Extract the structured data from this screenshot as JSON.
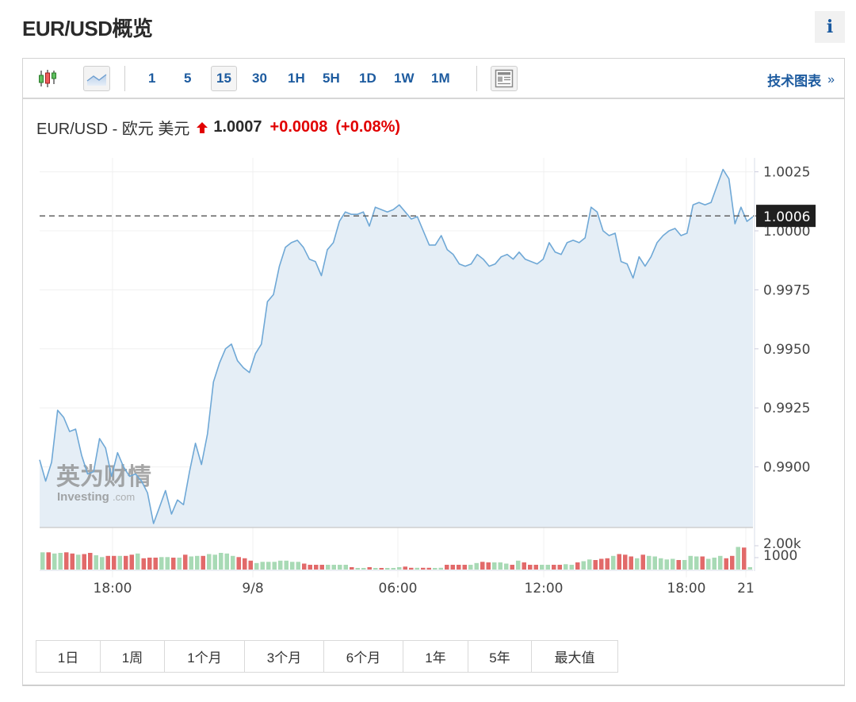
{
  "header": {
    "title": "EUR/USD概览",
    "info_icon": "info-icon",
    "info_label": "i"
  },
  "toolbar": {
    "chart_type_icons": [
      "candlestick-icon",
      "area-chart-icon"
    ],
    "intervals": [
      "1",
      "5",
      "15",
      "30",
      "1H",
      "5H",
      "1D",
      "1W",
      "1M"
    ],
    "active_interval": "15",
    "layout_icon": "layout-icon",
    "tech_chart_label": "技术图表",
    "tech_chart_chevron": "»"
  },
  "quote": {
    "name": "EUR/USD - 欧元 美元",
    "direction": "up",
    "price": "1.0007",
    "change": "+0.0008",
    "change_pct": "(+0.08%)",
    "up_color": "#e10000"
  },
  "watermark": {
    "cn": "英为财情",
    "en": "Investing",
    "en_suffix": ".com"
  },
  "range_buttons": [
    "1日",
    "1周",
    "1个月",
    "3个月",
    "6个月",
    "1年",
    "5年",
    "最大值"
  ],
  "chart_data": {
    "type": "area",
    "title": "EUR/USD - 欧元 美元",
    "interval": "15 minutes",
    "xlabel": "",
    "ylabel": "",
    "x_tick_labels": [
      "18:00",
      "9/8",
      "06:00",
      "12:00",
      "18:00",
      "21"
    ],
    "y_tick_labels": [
      "1.0025",
      "1.0000",
      "0.9975",
      "0.9950",
      "0.9925",
      "0.9900"
    ],
    "ylim": [
      0.9874,
      1.003
    ],
    "current_price_marker": "1.0006",
    "grid": true,
    "line_color": "#6fa8d6",
    "fill_color": "#e4edf5",
    "prices": [
      0.9903,
      0.9894,
      0.9902,
      0.9924,
      0.9921,
      0.9915,
      0.9916,
      0.9905,
      0.9897,
      0.9898,
      0.9912,
      0.9908,
      0.9896,
      0.9906,
      0.99,
      0.9896,
      0.9897,
      0.9894,
      0.9889,
      0.9876,
      0.9883,
      0.989,
      0.988,
      0.9886,
      0.9884,
      0.9898,
      0.991,
      0.9901,
      0.9914,
      0.9936,
      0.9944,
      0.995,
      0.9952,
      0.9945,
      0.9942,
      0.994,
      0.9948,
      0.9952,
      0.997,
      0.9973,
      0.9985,
      0.9993,
      0.9995,
      0.9996,
      0.9993,
      0.9988,
      0.9987,
      0.9981,
      0.9992,
      0.9995,
      1.0004,
      1.0008,
      1.0007,
      1.0007,
      1.0008,
      1.0002,
      1.001,
      1.0009,
      1.0008,
      1.0009,
      1.0011,
      1.0008,
      1.0005,
      1.0006,
      1.0,
      0.9994,
      0.9994,
      0.9998,
      0.9992,
      0.999,
      0.9986,
      0.9985,
      0.9986,
      0.999,
      0.9988,
      0.9985,
      0.9986,
      0.9989,
      0.999,
      0.9988,
      0.9991,
      0.9988,
      0.9987,
      0.9986,
      0.9988,
      0.9995,
      0.9991,
      0.999,
      0.9995,
      0.9996,
      0.9995,
      0.9997,
      1.001,
      1.0008,
      1.0,
      0.9998,
      0.9999,
      0.9987,
      0.9986,
      0.998,
      0.9989,
      0.9985,
      0.9989,
      0.9995,
      0.9998,
      1.0,
      1.0001,
      0.9998,
      0.9999,
      1.0011,
      1.0012,
      1.0011,
      1.0012,
      1.0019,
      1.0026,
      1.0022,
      1.0003,
      1.001,
      1.0004,
      1.0006
    ],
    "volume_axis": {
      "tick_labels": [
        "2.00k",
        "1000"
      ]
    },
    "volume": {
      "up_color": "#a8dab5",
      "down_color": "#e26a6a",
      "bars": [
        [
          1450,
          "up"
        ],
        [
          1450,
          "down"
        ],
        [
          1350,
          "up"
        ],
        [
          1400,
          "up"
        ],
        [
          1450,
          "down"
        ],
        [
          1350,
          "down"
        ],
        [
          1250,
          "up"
        ],
        [
          1300,
          "down"
        ],
        [
          1400,
          "down"
        ],
        [
          1200,
          "up"
        ],
        [
          1050,
          "up"
        ],
        [
          1150,
          "down"
        ],
        [
          1150,
          "down"
        ],
        [
          1150,
          "up"
        ],
        [
          1150,
          "down"
        ],
        [
          1250,
          "down"
        ],
        [
          1350,
          "up"
        ],
        [
          950,
          "down"
        ],
        [
          1000,
          "down"
        ],
        [
          1000,
          "down"
        ],
        [
          1050,
          "up"
        ],
        [
          1050,
          "up"
        ],
        [
          1000,
          "down"
        ],
        [
          1000,
          "up"
        ],
        [
          1250,
          "down"
        ],
        [
          1100,
          "up"
        ],
        [
          1150,
          "up"
        ],
        [
          1150,
          "down"
        ],
        [
          1300,
          "up"
        ],
        [
          1250,
          "up"
        ],
        [
          1400,
          "up"
        ],
        [
          1350,
          "up"
        ],
        [
          1150,
          "up"
        ],
        [
          1050,
          "down"
        ],
        [
          950,
          "down"
        ],
        [
          750,
          "down"
        ],
        [
          550,
          "up"
        ],
        [
          650,
          "up"
        ],
        [
          650,
          "up"
        ],
        [
          650,
          "up"
        ],
        [
          750,
          "up"
        ],
        [
          750,
          "up"
        ],
        [
          650,
          "up"
        ],
        [
          650,
          "up"
        ],
        [
          500,
          "down"
        ],
        [
          400,
          "down"
        ],
        [
          400,
          "down"
        ],
        [
          400,
          "down"
        ],
        [
          400,
          "up"
        ],
        [
          400,
          "up"
        ],
        [
          400,
          "up"
        ],
        [
          400,
          "up"
        ],
        [
          200,
          "down"
        ],
        [
          100,
          "up"
        ],
        [
          100,
          "up"
        ],
        [
          200,
          "down"
        ],
        [
          50,
          "up"
        ],
        [
          100,
          "down"
        ],
        [
          50,
          "up"
        ],
        [
          100,
          "up"
        ],
        [
          200,
          "up"
        ],
        [
          250,
          "down"
        ],
        [
          150,
          "down"
        ],
        [
          150,
          "up"
        ],
        [
          150,
          "down"
        ],
        [
          150,
          "down"
        ],
        [
          80,
          "up"
        ],
        [
          150,
          "up"
        ],
        [
          400,
          "down"
        ],
        [
          400,
          "down"
        ],
        [
          400,
          "down"
        ],
        [
          400,
          "down"
        ],
        [
          400,
          "up"
        ],
        [
          550,
          "up"
        ],
        [
          650,
          "down"
        ],
        [
          600,
          "down"
        ],
        [
          600,
          "up"
        ],
        [
          600,
          "up"
        ],
        [
          500,
          "up"
        ],
        [
          400,
          "down"
        ],
        [
          750,
          "up"
        ],
        [
          600,
          "down"
        ],
        [
          400,
          "down"
        ],
        [
          400,
          "down"
        ],
        [
          400,
          "up"
        ],
        [
          400,
          "up"
        ],
        [
          400,
          "down"
        ],
        [
          400,
          "down"
        ],
        [
          450,
          "up"
        ],
        [
          400,
          "up"
        ],
        [
          600,
          "down"
        ],
        [
          700,
          "up"
        ],
        [
          850,
          "up"
        ],
        [
          800,
          "down"
        ],
        [
          900,
          "down"
        ],
        [
          950,
          "down"
        ],
        [
          1150,
          "up"
        ],
        [
          1300,
          "down"
        ],
        [
          1250,
          "down"
        ],
        [
          1100,
          "down"
        ],
        [
          950,
          "up"
        ],
        [
          1250,
          "down"
        ],
        [
          1150,
          "up"
        ],
        [
          1100,
          "up"
        ],
        [
          950,
          "up"
        ],
        [
          850,
          "up"
        ],
        [
          900,
          "up"
        ],
        [
          800,
          "down"
        ],
        [
          800,
          "up"
        ],
        [
          1150,
          "up"
        ],
        [
          1100,
          "up"
        ],
        [
          1100,
          "down"
        ],
        [
          900,
          "up"
        ],
        [
          1000,
          "up"
        ],
        [
          1150,
          "up"
        ],
        [
          950,
          "down"
        ],
        [
          1150,
          "down"
        ],
        [
          1900,
          "up"
        ],
        [
          1850,
          "down"
        ],
        [
          200,
          "up"
        ]
      ]
    }
  }
}
